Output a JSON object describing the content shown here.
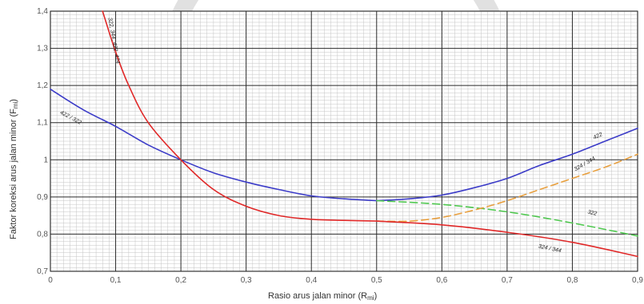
{
  "chart_data": {
    "type": "line",
    "xlabel": "Rasio arus jalan minor (R",
    "xlabel_sub": "mi",
    "ylabel": "Faktor koreksi arus jalan minor (F",
    "ylabel_sub": "mi",
    "xlim": [
      0,
      0.9
    ],
    "ylim": [
      0.7,
      1.4
    ],
    "x_ticks": [
      "0",
      "0,1",
      "0,2",
      "0,3",
      "0,4",
      "0,5",
      "0,6",
      "0,7",
      "0,8",
      "0,9"
    ],
    "y_ticks": [
      "0,7",
      "0,8",
      "0,9",
      "1",
      "1,1",
      "1,2",
      "1,3",
      "1,4"
    ],
    "grid": true,
    "colors": {
      "blue": "#3c3cc8",
      "red": "#e02828",
      "green": "#50c850",
      "orange": "#e8a040"
    },
    "series": [
      {
        "name": "422 / 322",
        "color": "blue",
        "dashed": false,
        "x": [
          0,
          0.05,
          0.1,
          0.15,
          0.2,
          0.25,
          0.3,
          0.35,
          0.4,
          0.45,
          0.5
        ],
        "y": [
          1.19,
          1.135,
          1.09,
          1.04,
          1.0,
          0.965,
          0.94,
          0.92,
          0.903,
          0.895,
          0.89
        ]
      },
      {
        "name": "422",
        "color": "blue",
        "dashed": false,
        "x": [
          0.5,
          0.55,
          0.6,
          0.65,
          0.7,
          0.75,
          0.8,
          0.85,
          0.9
        ],
        "y": [
          0.89,
          0.895,
          0.905,
          0.925,
          0.95,
          0.985,
          1.015,
          1.05,
          1.085
        ]
      },
      {
        "name": "322",
        "color": "green",
        "dashed": true,
        "x": [
          0.5,
          0.6,
          0.7,
          0.8,
          0.9
        ],
        "y": [
          0.89,
          0.88,
          0.86,
          0.83,
          0.795
        ]
      },
      {
        "name": "324 / 344",
        "color": "orange",
        "dashed": true,
        "x": [
          0.5,
          0.55,
          0.6,
          0.65,
          0.7,
          0.75,
          0.8,
          0.85,
          0.9
        ],
        "y": [
          0.835,
          0.835,
          0.845,
          0.865,
          0.89,
          0.92,
          0.95,
          0.98,
          1.015
        ]
      },
      {
        "name": "324 / 344",
        "color": "red",
        "dashed": false,
        "x": [
          0.5,
          0.6,
          0.7,
          0.8,
          0.9
        ],
        "y": [
          0.835,
          0.825,
          0.805,
          0.778,
          0.74
        ]
      },
      {
        "name": "322, 344, 422, 424",
        "color": "red",
        "dashed": false,
        "x": [
          0.08,
          0.1,
          0.12,
          0.15,
          0.2,
          0.25,
          0.3,
          0.35,
          0.4,
          0.45,
          0.5
        ],
        "y": [
          1.4,
          1.29,
          1.2,
          1.1,
          1.0,
          0.92,
          0.875,
          0.85,
          0.84,
          0.837,
          0.835
        ]
      }
    ],
    "curve_labels": [
      {
        "text": "422 / 322",
        "x": 0.03,
        "y": 1.11,
        "angle": 28
      },
      {
        "text": "322, 344, 422, 424",
        "x": 0.095,
        "y": 1.32,
        "angle": 80
      },
      {
        "text": "422",
        "x": 0.84,
        "y": 1.06,
        "angle": -25
      },
      {
        "text": "324 / 344",
        "x": 0.82,
        "y": 0.985,
        "angle": -30
      },
      {
        "text": "322",
        "x": 0.83,
        "y": 0.853,
        "angle": 12
      },
      {
        "text": "324 / 344",
        "x": 0.765,
        "y": 0.757,
        "angle": 12
      }
    ]
  }
}
